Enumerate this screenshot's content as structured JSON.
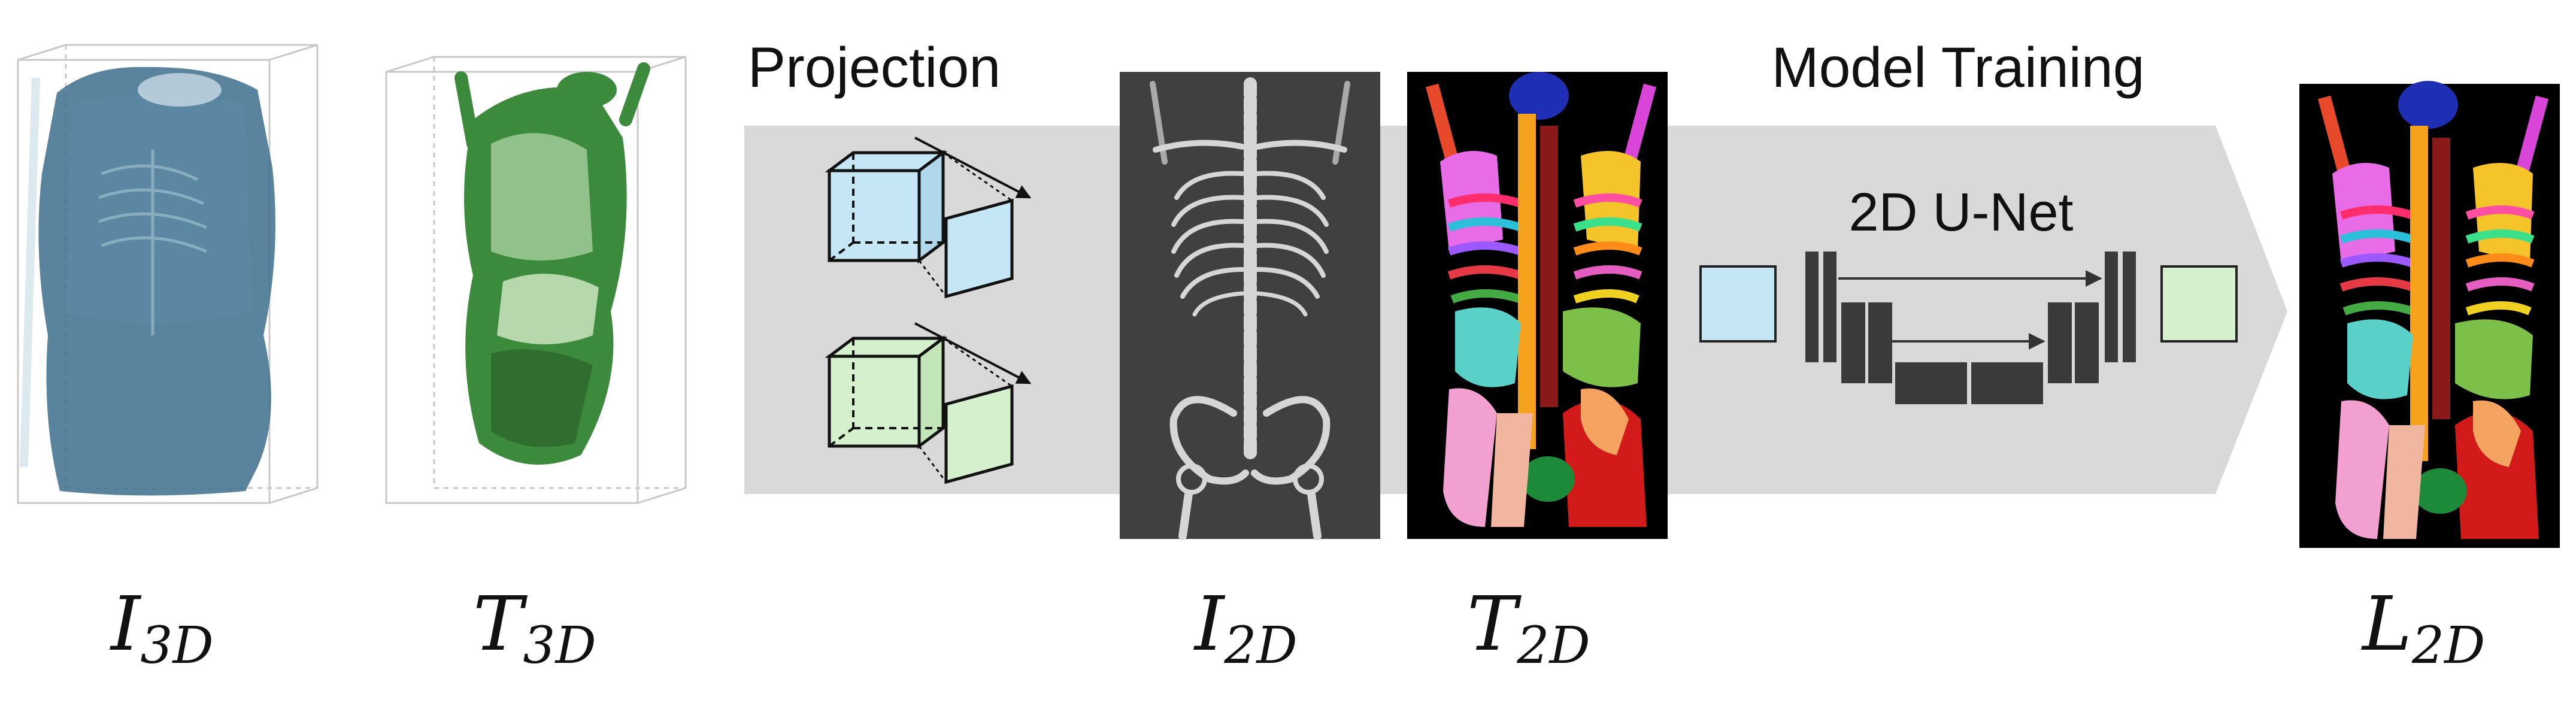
{
  "stages": {
    "projection": {
      "title": "Projection"
    },
    "training": {
      "title": "Model Training",
      "model": "2D U-Net"
    }
  },
  "labels": [
    {
      "main": "I",
      "sub": "3D"
    },
    {
      "main": "T",
      "sub": "3D"
    },
    {
      "main": "I",
      "sub": "2D"
    },
    {
      "main": "T",
      "sub": "2D"
    },
    {
      "main": "L",
      "sub": "2D"
    }
  ],
  "colors": {
    "arrow_band": "#d9d9d9",
    "ct_blue": "#3d6f8c",
    "seg_green": "#3c8a3c",
    "cube_blue": "#c5e6f5",
    "cube_green": "#d4f0cc",
    "unet_block": "#3a3a3a",
    "xray_bg": "#404040"
  },
  "icons": {
    "ct_volume": "ct-torso-volume-icon",
    "seg_volume": "segmentation-volume-icon",
    "projection": "parallel-projection-cube-icon",
    "xray": "xray-projection-image",
    "seg_map": "segmentation-map-image",
    "unet": "unet-architecture-icon"
  }
}
